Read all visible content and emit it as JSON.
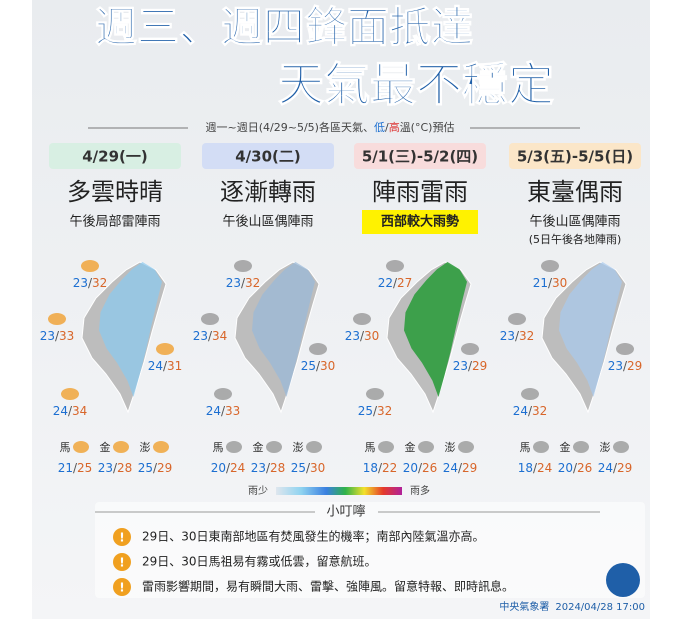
{
  "title_lines": [
    "週三、週四鋒面抵達",
    "天氣最不穩定"
  ],
  "subtitle": {
    "prefix": "週一~週日(4/29~5/5)各區天氣、",
    "low": "低",
    "slash": "/",
    "high": "高",
    "suffix": "溫(°C)預估"
  },
  "temp_separator": "/",
  "island_names": [
    "馬",
    "金",
    "澎"
  ],
  "days": [
    {
      "date": "4/29(一)",
      "weather": "多雲時晴",
      "notes": [
        "午後局部雷陣雨"
      ],
      "temps": [
        {
          "low": 23,
          "high": 32
        },
        {
          "low": 23,
          "high": 33
        },
        {
          "low": 24,
          "high": 31
        },
        {
          "low": 24,
          "high": 34
        }
      ],
      "islands": [
        {
          "low": 21,
          "high": 25
        },
        {
          "low": 23,
          "high": 28
        },
        {
          "low": 25,
          "high": 29
        }
      ]
    },
    {
      "date": "4/30(二)",
      "weather": "逐漸轉雨",
      "notes": [
        "午後山區偶陣雨"
      ],
      "temps": [
        {
          "low": 23,
          "high": 32
        },
        {
          "low": 23,
          "high": 34
        },
        {
          "low": 25,
          "high": 30
        },
        {
          "low": 24,
          "high": 33
        }
      ],
      "islands": [
        {
          "low": 20,
          "high": 24
        },
        {
          "low": 23,
          "high": 28
        },
        {
          "low": 25,
          "high": 30
        }
      ]
    },
    {
      "date": "5/1(三)-5/2(四)",
      "weather": "陣雨雷雨",
      "notes": [
        "西部較大雨勢"
      ],
      "highlight": true,
      "temps": [
        {
          "low": 22,
          "high": 27
        },
        {
          "low": 23,
          "high": 30
        },
        {
          "low": 23,
          "high": 29
        },
        {
          "low": 25,
          "high": 32
        }
      ],
      "islands": [
        {
          "low": 18,
          "high": 22
        },
        {
          "low": 20,
          "high": 26
        },
        {
          "low": 24,
          "high": 29
        }
      ]
    },
    {
      "date": "5/3(五)-5/5(日)",
      "weather": "東臺偶雨",
      "notes": [
        "午後山區偶陣雨",
        "(5日午後各地陣雨)"
      ],
      "temps": [
        {
          "low": 21,
          "high": 30
        },
        {
          "low": 23,
          "high": 32
        },
        {
          "low": 23,
          "high": 29
        },
        {
          "low": 24,
          "high": 32
        }
      ],
      "islands": [
        {
          "low": 18,
          "high": 24
        },
        {
          "low": 20,
          "high": 26
        },
        {
          "low": 24,
          "high": 29
        }
      ]
    }
  ],
  "legend": {
    "low": "雨少",
    "high": "雨多"
  },
  "tips": {
    "title": "小叮嚀",
    "items": [
      "29日、30日東南部地區有焚風發生的機率；南部內陸氣溫亦高。",
      "29日、30日馬祖易有霧或低雲，留意航班。",
      "雷雨影響期間，易有瞬間大雨、雷擊、強陣風。留意特報、即時訊息。"
    ]
  },
  "footer": {
    "agency": "中央氣象署",
    "time": "2024/04/28 17:00"
  }
}
